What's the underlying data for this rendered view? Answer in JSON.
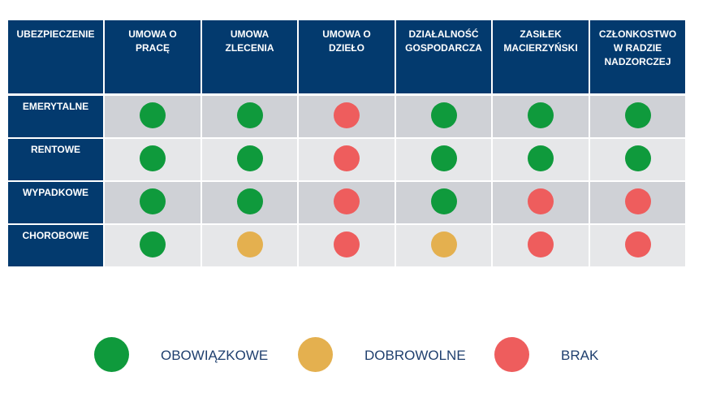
{
  "table": {
    "header": [
      [
        "UBEZPIECZENIE"
      ],
      [
        "UMOWA O",
        "PRACĘ"
      ],
      [
        "UMOWA",
        "ZLECENIA"
      ],
      [
        "UMOWA O",
        "DZIEŁO"
      ],
      [
        "DZIAŁALNOŚĆ",
        "GOSPODARCZA"
      ],
      [
        "ZASIŁEK",
        "MACIERZYŃSKI"
      ],
      [
        "CZŁONKOSTWO",
        "W RADZIE",
        "NADZORCZEJ"
      ]
    ],
    "rows": [
      {
        "label": "EMERYTALNE",
        "cells": [
          "OBOWIĄZKOWE",
          "OBOWIĄZKOWE",
          "BRAK",
          "OBOWIĄZKOWE",
          "OBOWIĄZKOWE",
          "OBOWIĄZKOWE"
        ]
      },
      {
        "label": "RENTOWE",
        "cells": [
          "OBOWIĄZKOWE",
          "OBOWIĄZKOWE",
          "BRAK",
          "OBOWIĄZKOWE",
          "OBOWIĄZKOWE",
          "OBOWIĄZKOWE"
        ]
      },
      {
        "label": "WYPADKOWE",
        "cells": [
          "OBOWIĄZKOWE",
          "OBOWIĄZKOWE",
          "BRAK",
          "OBOWIĄZKOWE",
          "BRAK",
          "BRAK"
        ]
      },
      {
        "label": "CHOROBOWE",
        "cells": [
          "OBOWIĄZKOWE",
          "DOBROWOLNE",
          "BRAK",
          "DOBROWOLNE",
          "BRAK",
          "BRAK"
        ]
      }
    ]
  },
  "legend": [
    {
      "label": "OBOWIĄZKOWE",
      "color": "#0f9a3c"
    },
    {
      "label": "DOBROWOLNE",
      "color": "#e4b04f"
    },
    {
      "label": "BRAK",
      "color": "#ee5d5d"
    }
  ]
}
